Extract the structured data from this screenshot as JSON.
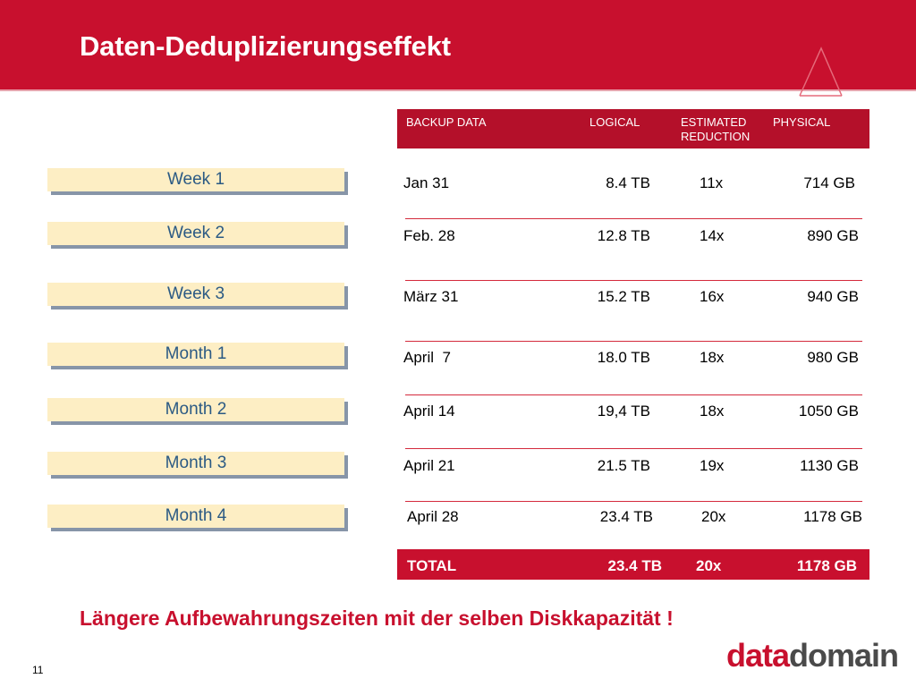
{
  "slide": {
    "title": "Daten-Deduplizierungseffekt",
    "conclusion": "Längere Aufbewahrungszeiten mit der selben Diskkapazität !",
    "page_number": "11",
    "logo": {
      "part1": "data",
      "part2": "domain"
    }
  },
  "periods": [
    "Week 1",
    "Week 2",
    "Week 3",
    "Month 1",
    "Month 2",
    "Month 3",
    "Month 4"
  ],
  "table": {
    "headers": {
      "date": "BACKUP DATA",
      "logical": "LOGICAL",
      "reduction_line1": "ESTIMATED",
      "reduction_line2": "REDUCTION",
      "physical": "PHYSICAL"
    },
    "rows": [
      {
        "date": "Jan 31",
        "logical": "8.4 TB",
        "reduction": "11x",
        "physical": "714 GB"
      },
      {
        "date": "Feb. 28",
        "logical": "12.8 TB",
        "reduction": "14x",
        "physical": "890 GB"
      },
      {
        "date": "März 31",
        "logical": "15.2 TB",
        "reduction": "16x",
        "physical": "940 GB"
      },
      {
        "date": "April  7",
        "logical": "18.0 TB",
        "reduction": "18x",
        "physical": "980 GB"
      },
      {
        "date": "April 14",
        "logical": "19,4 TB",
        "reduction": "18x",
        "physical": "1050 GB"
      },
      {
        "date": "April 21",
        "logical": "21.5 TB",
        "reduction": "19x",
        "physical": "1130 GB"
      },
      {
        "date": "April 28",
        "logical": "23.4 TB",
        "reduction": "20x",
        "physical": "1178 GB"
      }
    ],
    "total": {
      "label": "TOTAL",
      "logical": "23.4 TB",
      "reduction": "20x",
      "physical": "1178 GB"
    }
  },
  "colors": {
    "brand_red": "#c8102e",
    "period_box_fill": "#fdeec4",
    "period_box_text": "#2b5a84",
    "period_box_shadow": "#8795a8"
  }
}
